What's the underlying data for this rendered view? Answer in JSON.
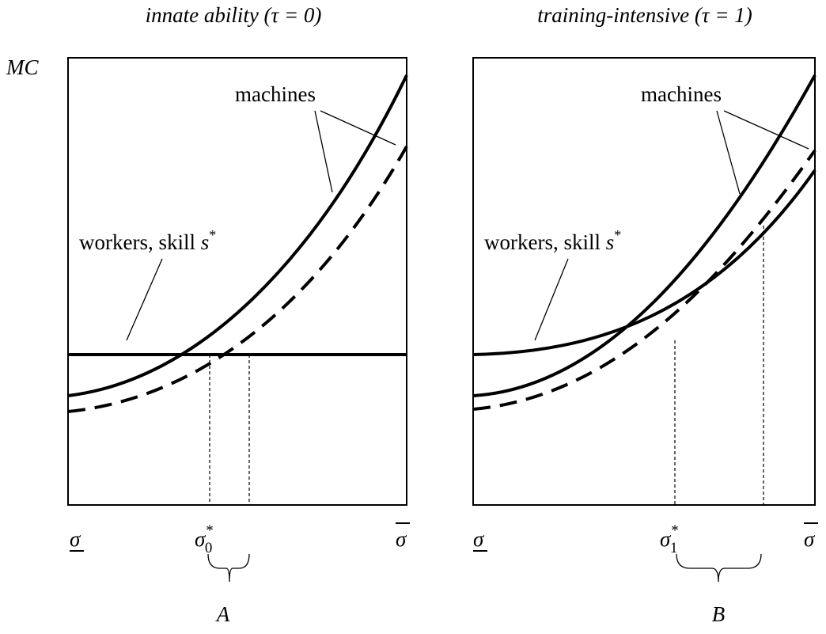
{
  "panels": [
    {
      "title": "innate ability (τ = 0)",
      "y_label": "MC",
      "curve_labels": {
        "machines": "machines",
        "workers": {
          "text": "workers, skill ",
          "var": "s",
          "sup": "*"
        }
      },
      "x_labels": {
        "low": "σ",
        "threshold": {
          "symbol": "σ",
          "sub": "0",
          "sup": "*"
        },
        "high": "σ"
      },
      "brace_label": "A"
    },
    {
      "title": "training-intensive (τ = 1)",
      "curve_labels": {
        "machines": "machines",
        "workers": {
          "text": "workers, skill ",
          "var": "s",
          "sup": "*"
        }
      },
      "x_labels": {
        "low": "σ",
        "threshold": {
          "symbol": "σ",
          "sub": "1",
          "sup": "*"
        },
        "high": "σ"
      },
      "brace_label": "B"
    }
  ]
}
